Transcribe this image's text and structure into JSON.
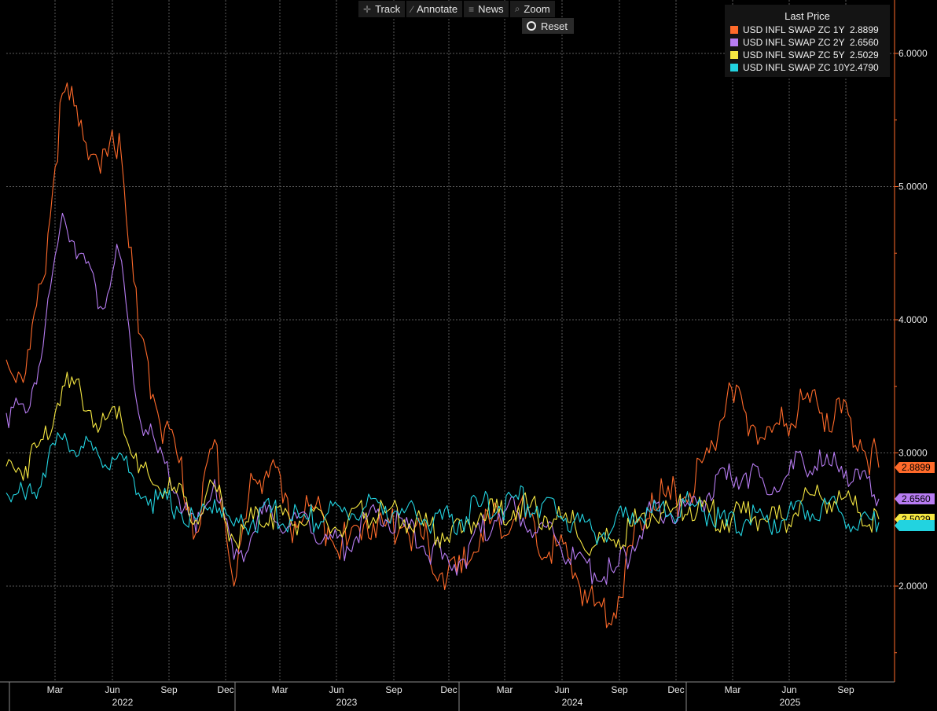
{
  "toolbar": {
    "track_label": "Track",
    "annotate_label": "Annotate",
    "news_label": "News",
    "zoom_label": "Zoom",
    "reset_label": "Reset"
  },
  "legend": {
    "title": "Last Price",
    "items": [
      {
        "name": "USD INFL SWAP ZC 1Y",
        "value": "2.8899",
        "color": "#ff6a2a"
      },
      {
        "name": "USD INFL SWAP ZC 2Y",
        "value": "2.6560",
        "color": "#b77cf2"
      },
      {
        "name": "USD INFL SWAP ZC 5Y",
        "value": "2.5029",
        "color": "#f5e742"
      },
      {
        "name": "USD INFL SWAP ZC 10Y",
        "value": "2.4790",
        "color": "#22d3e0"
      }
    ]
  },
  "chart_data": {
    "type": "line",
    "title": "",
    "xlabel": "",
    "ylabel": "",
    "ylim": [
      1.3,
      6.5
    ],
    "y_ticks": [
      "2.0000",
      "3.0000",
      "4.0000",
      "5.0000",
      "6.0000"
    ],
    "x_month_labels": [
      "Mar",
      "Jun",
      "Sep",
      "Dec",
      "Mar",
      "Jun",
      "Sep",
      "Dec",
      "Mar",
      "Jun",
      "Sep",
      "Dec",
      "Mar",
      "Jun",
      "Sep"
    ],
    "x_year_labels": [
      "2022",
      "2023",
      "2024",
      "2025"
    ],
    "grid": true,
    "legend_position": "top-right",
    "x_range": [
      "2022-01-01",
      "2025-10-31"
    ],
    "x": [
      "2022-01-01",
      "2022-02-01",
      "2022-03-01",
      "2022-04-01",
      "2022-05-01",
      "2022-06-01",
      "2022-07-01",
      "2022-08-01",
      "2022-09-01",
      "2022-10-01",
      "2022-11-01",
      "2022-12-01",
      "2023-01-01",
      "2023-02-01",
      "2023-03-01",
      "2023-04-01",
      "2023-05-01",
      "2023-06-01",
      "2023-07-01",
      "2023-08-01",
      "2023-09-01",
      "2023-10-01",
      "2023-11-01",
      "2023-12-01",
      "2024-01-01",
      "2024-02-01",
      "2024-03-01",
      "2024-04-01",
      "2024-05-01",
      "2024-06-01",
      "2024-07-01",
      "2024-08-01",
      "2024-09-01",
      "2024-10-01",
      "2024-11-01",
      "2024-12-01",
      "2025-01-01",
      "2025-02-01",
      "2025-03-01",
      "2025-04-01",
      "2025-05-01",
      "2025-06-01",
      "2025-07-01",
      "2025-08-01",
      "2025-09-01",
      "2025-10-01",
      "2025-10-31"
    ],
    "series": [
      {
        "name": "USD INFL SWAP ZC 1Y",
        "color": "#ff6a2a",
        "values": [
          3.7,
          3.6,
          4.3,
          5.7,
          5.5,
          5.1,
          5.4,
          3.9,
          3.3,
          3.0,
          2.4,
          3.1,
          2.0,
          2.8,
          2.9,
          2.45,
          2.6,
          2.45,
          2.3,
          2.5,
          2.45,
          2.45,
          2.35,
          2.1,
          2.1,
          2.4,
          2.5,
          2.6,
          2.3,
          2.3,
          2.1,
          1.85,
          1.8,
          2.3,
          2.7,
          2.65,
          2.7,
          3.0,
          3.4,
          3.3,
          3.1,
          3.2,
          3.4,
          3.3,
          3.3,
          3.1,
          2.8899
        ]
      },
      {
        "name": "USD INFL SWAP ZC 2Y",
        "color": "#b77cf2",
        "values": [
          3.3,
          3.3,
          3.8,
          4.8,
          4.5,
          4.1,
          4.5,
          3.3,
          3.0,
          2.7,
          2.4,
          2.8,
          2.2,
          2.4,
          2.6,
          2.45,
          2.5,
          2.35,
          2.3,
          2.5,
          2.5,
          2.45,
          2.3,
          2.2,
          2.2,
          2.4,
          2.55,
          2.55,
          2.4,
          2.35,
          2.2,
          2.1,
          2.1,
          2.3,
          2.55,
          2.55,
          2.6,
          2.7,
          2.8,
          2.85,
          2.75,
          2.8,
          2.95,
          2.9,
          2.9,
          2.8,
          2.656
        ]
      },
      {
        "name": "USD INFL SWAP ZC 5Y",
        "color": "#f5e742",
        "values": [
          2.9,
          2.9,
          3.1,
          3.5,
          3.45,
          3.2,
          3.35,
          2.85,
          2.75,
          2.7,
          2.5,
          2.75,
          2.35,
          2.5,
          2.55,
          2.5,
          2.5,
          2.45,
          2.45,
          2.55,
          2.55,
          2.5,
          2.45,
          2.4,
          2.4,
          2.55,
          2.55,
          2.6,
          2.55,
          2.5,
          2.45,
          2.3,
          2.35,
          2.45,
          2.55,
          2.55,
          2.6,
          2.55,
          2.5,
          2.55,
          2.5,
          2.5,
          2.65,
          2.65,
          2.65,
          2.55,
          2.5029
        ]
      },
      {
        "name": "USD INFL SWAP ZC 10Y",
        "color": "#22d3e0",
        "values": [
          2.7,
          2.65,
          2.85,
          3.1,
          3.05,
          2.95,
          3.0,
          2.7,
          2.65,
          2.6,
          2.5,
          2.65,
          2.45,
          2.5,
          2.55,
          2.5,
          2.5,
          2.55,
          2.55,
          2.6,
          2.6,
          2.55,
          2.5,
          2.5,
          2.5,
          2.6,
          2.6,
          2.65,
          2.6,
          2.55,
          2.5,
          2.4,
          2.45,
          2.55,
          2.55,
          2.55,
          2.6,
          2.55,
          2.45,
          2.5,
          2.5,
          2.5,
          2.6,
          2.6,
          2.55,
          2.5,
          2.479
        ]
      }
    ]
  }
}
